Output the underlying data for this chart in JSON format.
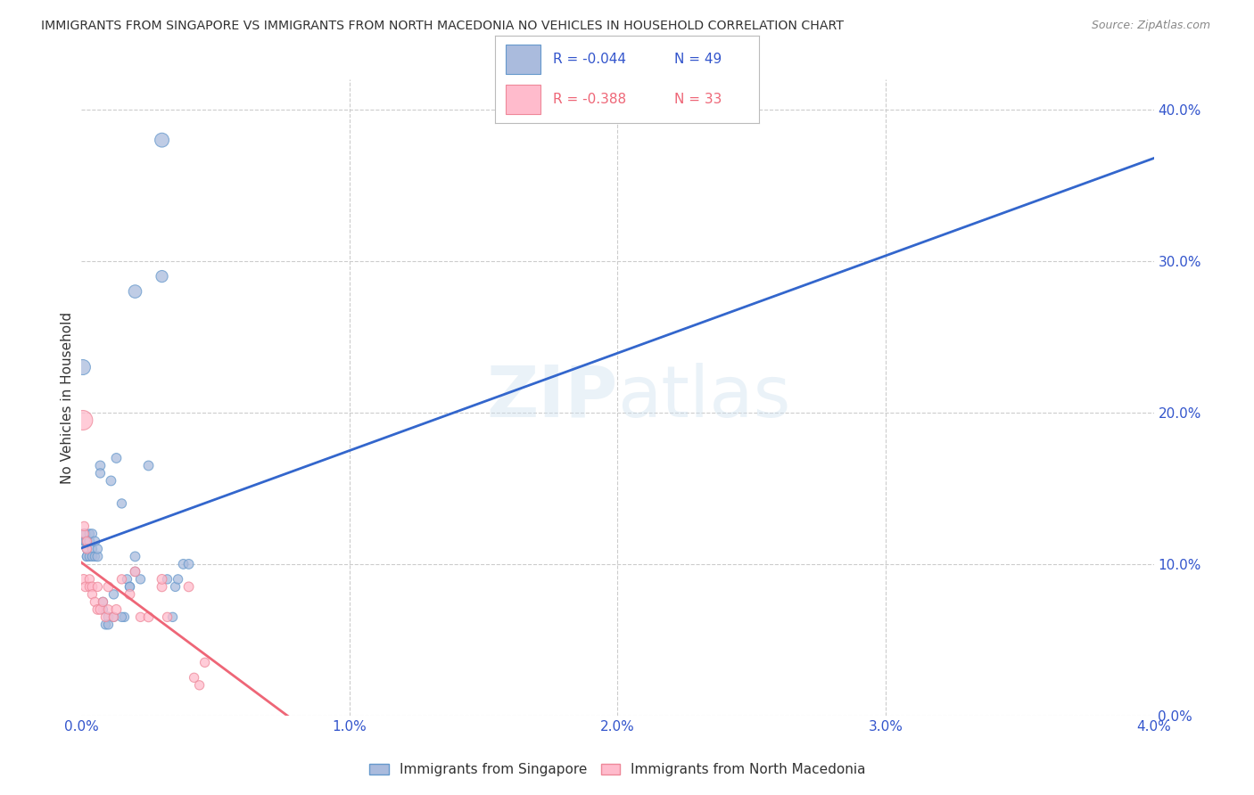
{
  "title": "IMMIGRANTS FROM SINGAPORE VS IMMIGRANTS FROM NORTH MACEDONIA NO VEHICLES IN HOUSEHOLD CORRELATION CHART",
  "source": "Source: ZipAtlas.com",
  "ylabel": "No Vehicles in Household",
  "xlim": [
    0.0,
    0.04
  ],
  "ylim": [
    0.0,
    0.42
  ],
  "xtick_vals": [
    0.0,
    0.01,
    0.02,
    0.03,
    0.04
  ],
  "xtick_labels": [
    "0.0%",
    "1.0%",
    "2.0%",
    "3.0%",
    "4.0%"
  ],
  "ytick_vals": [
    0.0,
    0.1,
    0.2,
    0.3,
    0.4
  ],
  "ytick_labels": [
    "0.0%",
    "10.0%",
    "20.0%",
    "30.0%",
    "40.0%"
  ],
  "grid_color": "#cccccc",
  "singapore_color": "#aabbdd",
  "singapore_edge_color": "#6699cc",
  "singapore_line_color": "#3366cc",
  "macedonia_color": "#ffbbcc",
  "macedonia_edge_color": "#ee8899",
  "macedonia_line_color": "#ee6677",
  "watermark_color": "#cce0ee",
  "watermark_alpha": 0.4,
  "bg_color": "#ffffff",
  "title_color": "#333333",
  "tick_color": "#3355cc",
  "legend_text_sg_color": "#3355cc",
  "legend_text_mk_color": "#ee6677",
  "singapore_R": -0.044,
  "singapore_N": 49,
  "macedonia_R": -0.388,
  "macedonia_N": 33,
  "sg_x": [
    5e-05,
    0.0001,
    0.0001,
    0.00015,
    0.00015,
    0.0002,
    0.0002,
    0.0002,
    0.0002,
    0.0003,
    0.0003,
    0.0003,
    0.0004,
    0.0004,
    0.0004,
    0.0005,
    0.0005,
    0.0006,
    0.0006,
    0.0007,
    0.0007,
    0.0008,
    0.0008,
    0.0009,
    0.001,
    0.001,
    0.0011,
    0.0012,
    0.0013,
    0.0015,
    0.0016,
    0.0017,
    0.0018,
    0.002,
    0.002,
    0.0022,
    0.0025,
    0.003,
    0.003,
    0.0032,
    0.0034,
    0.0035,
    0.0036,
    0.0038,
    0.004,
    0.0012,
    0.0015,
    0.0018,
    0.002
  ],
  "sg_y": [
    0.23,
    0.12,
    0.115,
    0.12,
    0.115,
    0.115,
    0.105,
    0.11,
    0.105,
    0.115,
    0.105,
    0.12,
    0.12,
    0.11,
    0.105,
    0.115,
    0.105,
    0.105,
    0.11,
    0.165,
    0.16,
    0.07,
    0.075,
    0.06,
    0.065,
    0.06,
    0.155,
    0.065,
    0.17,
    0.14,
    0.065,
    0.09,
    0.085,
    0.28,
    0.105,
    0.09,
    0.165,
    0.38,
    0.29,
    0.09,
    0.065,
    0.085,
    0.09,
    0.1,
    0.1,
    0.08,
    0.065,
    0.085,
    0.095
  ],
  "sg_sizes": [
    150,
    60,
    55,
    55,
    55,
    55,
    55,
    55,
    55,
    60,
    55,
    55,
    55,
    55,
    55,
    60,
    55,
    60,
    55,
    60,
    55,
    55,
    55,
    55,
    60,
    55,
    60,
    55,
    60,
    55,
    55,
    55,
    55,
    110,
    60,
    55,
    60,
    130,
    90,
    55,
    55,
    55,
    55,
    60,
    60,
    55,
    55,
    55,
    55
  ],
  "mk_x": [
    5e-05,
    8e-05,
    0.0001,
    0.0001,
    0.00015,
    0.0002,
    0.0002,
    0.0003,
    0.0003,
    0.0004,
    0.0004,
    0.0005,
    0.0006,
    0.0006,
    0.0007,
    0.0008,
    0.0009,
    0.001,
    0.001,
    0.0012,
    0.0013,
    0.0015,
    0.0018,
    0.002,
    0.0022,
    0.0025,
    0.003,
    0.003,
    0.0032,
    0.004,
    0.0042,
    0.0044,
    0.0046
  ],
  "mk_y": [
    0.195,
    0.09,
    0.12,
    0.125,
    0.085,
    0.115,
    0.11,
    0.09,
    0.085,
    0.085,
    0.08,
    0.075,
    0.07,
    0.085,
    0.07,
    0.075,
    0.065,
    0.085,
    0.07,
    0.065,
    0.07,
    0.09,
    0.08,
    0.095,
    0.065,
    0.065,
    0.085,
    0.09,
    0.065,
    0.085,
    0.025,
    0.02,
    0.035
  ],
  "mk_sizes": [
    250,
    60,
    55,
    55,
    60,
    55,
    55,
    55,
    55,
    60,
    55,
    55,
    60,
    55,
    60,
    55,
    55,
    60,
    55,
    55,
    60,
    55,
    60,
    60,
    55,
    60,
    60,
    60,
    55,
    60,
    55,
    55,
    55
  ]
}
